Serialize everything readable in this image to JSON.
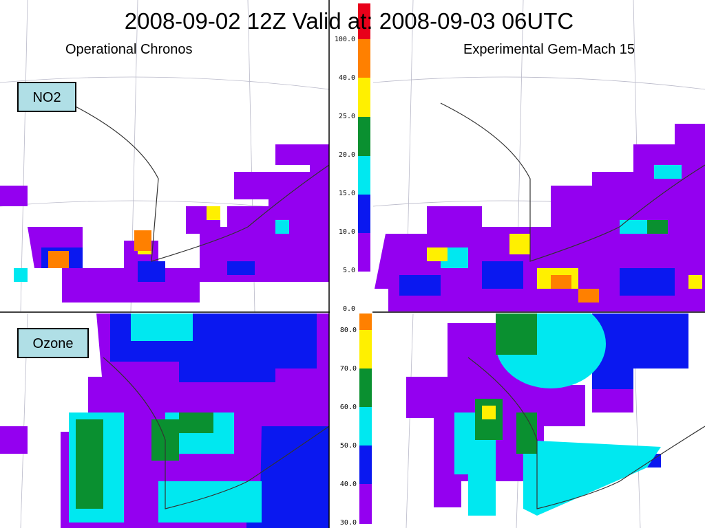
{
  "header": {
    "title": "2008-09-02 12Z Valid at:  2008-09-03 06UTC",
    "left_label": "Operational Chronos",
    "right_label": "Experimental Gem-Mach 15"
  },
  "panels": {
    "no2": {
      "label": "NO2",
      "colorbar": [
        "100.0",
        "40.0",
        "25.0",
        "20.0",
        "15.0",
        "10.0",
        "5.0",
        "0.0"
      ]
    },
    "ozone": {
      "label": "Ozone",
      "colorbar": [
        "80.0",
        "70.0",
        "60.0",
        "50.0",
        "40.0",
        "30.0"
      ]
    }
  }
}
